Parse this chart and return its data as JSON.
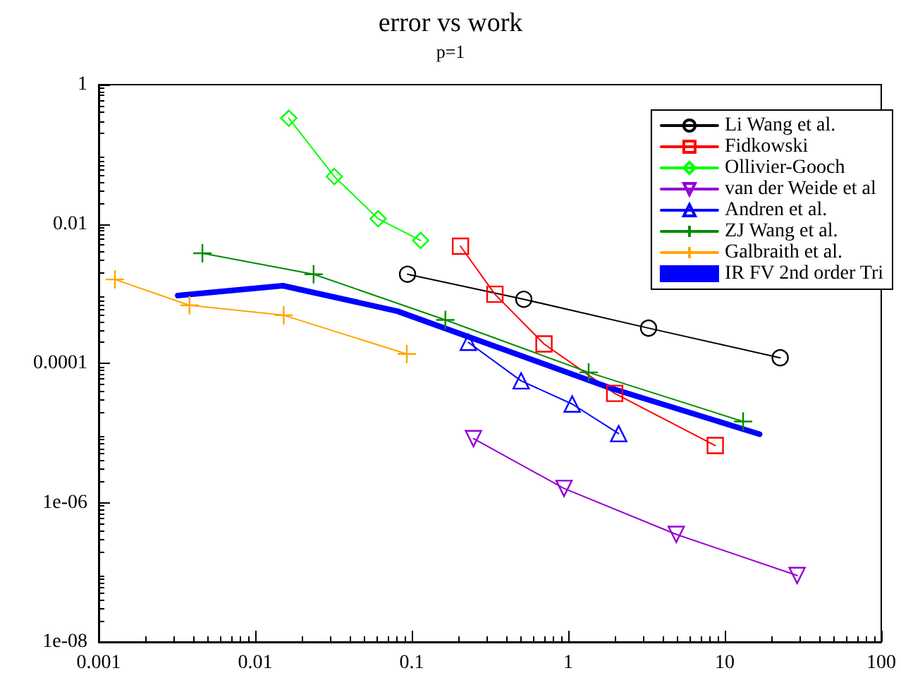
{
  "chart_data": {
    "type": "line",
    "title": "error vs work",
    "subtitle": "p=1",
    "log": "xy",
    "grid": false,
    "legend": "top right",
    "line_style": "solid",
    "xlim": [
      0.001,
      100
    ],
    "xticks": [
      0.001,
      0.01,
      0.1,
      1,
      10,
      100
    ],
    "ylim": [
      1e-08,
      1
    ],
    "yticks": [
      {
        "value": 1e-08,
        "label": "1e-08"
      },
      {
        "value": 1e-06,
        "label": "1e-06"
      },
      {
        "value": 0.0001,
        "label": "0.0001"
      },
      {
        "value": 0.01,
        "label": "0.01"
      },
      {
        "value": 1,
        "label": "1"
      }
    ],
    "series": [
      {
        "name": "Li Wang et al.",
        "color": "#000000",
        "marker": "circle",
        "x": [
          0.094,
          0.52,
          3.26,
          22.6
        ],
        "values": [
          0.0019,
          0.00083,
          0.00032,
          0.00012
        ]
      },
      {
        "name": "Fidkowski",
        "color": "#ff0000",
        "marker": "square",
        "x": [
          0.205,
          0.34,
          0.7,
          1.98,
          8.7
        ],
        "values": [
          0.0048,
          0.00098,
          0.00019,
          3.7e-05,
          6.6e-06
        ]
      },
      {
        "name": "Ollivier-Gooch",
        "color": "#00ff00",
        "marker": "diamond",
        "x": [
          0.0164,
          0.032,
          0.061,
          0.114
        ],
        "values": [
          0.33,
          0.048,
          0.0119,
          0.0058
        ]
      },
      {
        "name": "van der Weide et al",
        "color": "#9400d3",
        "marker": "triangle_down",
        "x": [
          0.248,
          0.94,
          4.9,
          29
        ],
        "values": [
          8.3e-06,
          1.6e-06,
          3.5e-07,
          9e-08
        ]
      },
      {
        "name": "Andren et al.",
        "color": "#0000ff",
        "marker": "triangle",
        "x": [
          0.23,
          0.5,
          1.06,
          2.1
        ],
        "values": [
          0.0002,
          5.6e-05,
          2.6e-05,
          9.8e-06
        ]
      },
      {
        "name": "ZJ Wang et al.",
        "color": "#008b00",
        "marker": "cross",
        "x": [
          0.0046,
          0.0236,
          0.164,
          1.35,
          13.1
        ],
        "values": [
          0.0038,
          0.0019,
          0.00042,
          7.4e-05,
          1.46e-05
        ]
      },
      {
        "name": "Galbraith et al.",
        "color": "#ffa500",
        "marker": "cross",
        "x": [
          0.00127,
          0.0038,
          0.0152,
          0.093
        ],
        "values": [
          0.0016,
          0.00068,
          0.00049,
          0.000136
        ]
      },
      {
        "name": "IR FV 2nd order Tri",
        "color": "#0000ff",
        "marker": "none",
        "x": [
          0.0032,
          0.015,
          0.081,
          0.42,
          1.87,
          16.7
        ],
        "values": [
          0.00094,
          0.0013,
          0.00056,
          0.000148,
          4.4e-05,
          9.6e-06
        ]
      }
    ]
  }
}
